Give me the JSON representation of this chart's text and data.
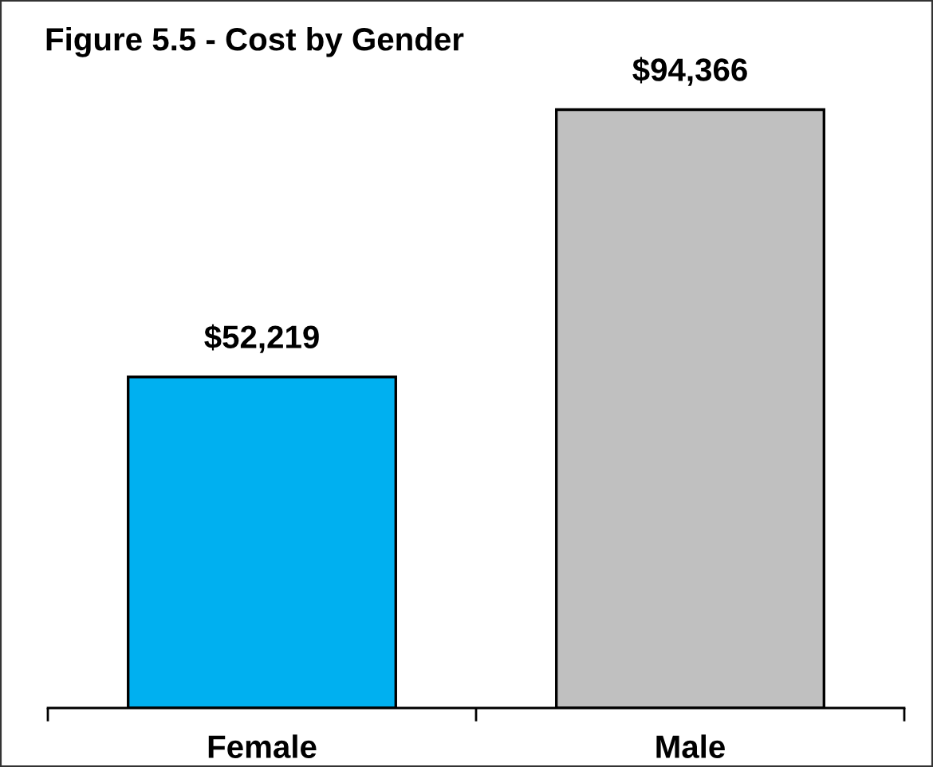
{
  "chart_data": {
    "type": "bar",
    "title": "Figure 5.5 - Cost by Gender",
    "categories": [
      "Female",
      "Male"
    ],
    "values": [
      52219,
      94366
    ],
    "colors": [
      "#00b0f0",
      "#c0c0c0"
    ],
    "value_labels": [
      "$52,219",
      "$94,366"
    ],
    "tick_labels": "x"
  }
}
